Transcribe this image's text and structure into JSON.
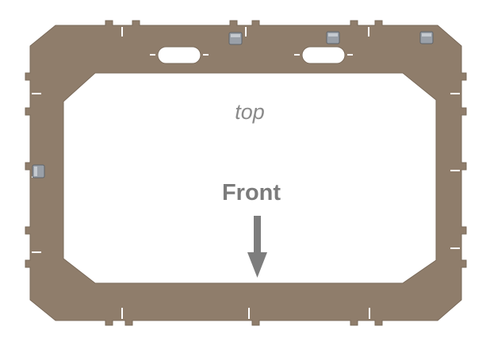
{
  "labels": {
    "top": "top",
    "front": "Front"
  },
  "colors": {
    "panel": "#8f7d6b",
    "panel_edge": "#7a6a5a",
    "background": "#ffffff",
    "slot_cutout": "#ffffff",
    "clip": "#9aa0a8",
    "arrow": "#7d7d7d",
    "label_text": "#8a8a8a"
  },
  "parts": {
    "frame": "octagonal-frame-panel",
    "mount_slots": 2,
    "corner_clips": 4
  }
}
